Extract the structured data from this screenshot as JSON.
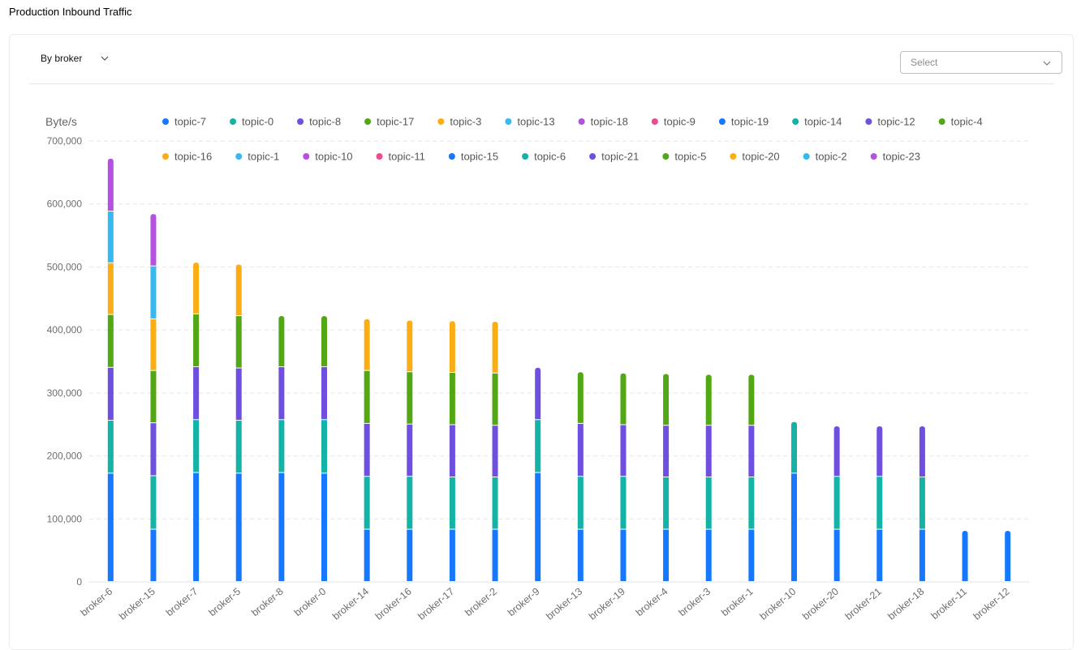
{
  "header": {
    "title": "Production Inbound Traffic"
  },
  "toolbar": {
    "group_by_label": "By broker",
    "filter_placeholder": "Select"
  },
  "colors": [
    "#1677ff",
    "#13b3a8",
    "#6f4fe0",
    "#52a814",
    "#faad14",
    "#36b9ee",
    "#b551e0",
    "#eb4b8f"
  ],
  "chart_data": {
    "type": "bar",
    "stacked": true,
    "ylabel": "Byte/s",
    "ylim": [
      0,
      700000
    ],
    "yticks": [
      0,
      100000,
      200000,
      300000,
      400000,
      500000,
      600000,
      700000
    ],
    "ytick_labels": [
      "0",
      "100,000",
      "200,000",
      "300,000",
      "400,000",
      "500,000",
      "600,000",
      "700,000"
    ],
    "grid": true,
    "legend_position": "top",
    "legend": [
      {
        "name": "topic-7",
        "color": "#1677ff"
      },
      {
        "name": "topic-0",
        "color": "#13b3a8"
      },
      {
        "name": "topic-8",
        "color": "#6f4fe0"
      },
      {
        "name": "topic-17",
        "color": "#52a814"
      },
      {
        "name": "topic-3",
        "color": "#faad14"
      },
      {
        "name": "topic-13",
        "color": "#36b9ee"
      },
      {
        "name": "topic-18",
        "color": "#b551e0"
      },
      {
        "name": "topic-9",
        "color": "#eb4b8f"
      },
      {
        "name": "topic-19",
        "color": "#1677ff"
      },
      {
        "name": "topic-14",
        "color": "#13b3a8"
      },
      {
        "name": "topic-12",
        "color": "#6f4fe0"
      },
      {
        "name": "topic-4",
        "color": "#52a814"
      },
      {
        "name": "topic-16",
        "color": "#faad14"
      },
      {
        "name": "topic-1",
        "color": "#36b9ee"
      },
      {
        "name": "topic-10",
        "color": "#b551e0"
      },
      {
        "name": "topic-11",
        "color": "#eb4b8f"
      },
      {
        "name": "topic-15",
        "color": "#1677ff"
      },
      {
        "name": "topic-6",
        "color": "#13b3a8"
      },
      {
        "name": "topic-21",
        "color": "#6f4fe0"
      },
      {
        "name": "topic-5",
        "color": "#52a814"
      },
      {
        "name": "topic-20",
        "color": "#faad14"
      },
      {
        "name": "topic-2",
        "color": "#36b9ee"
      },
      {
        "name": "topic-23",
        "color": "#b551e0"
      }
    ],
    "categories": [
      "broker-6",
      "broker-15",
      "broker-7",
      "broker-5",
      "broker-8",
      "broker-0",
      "broker-14",
      "broker-16",
      "broker-17",
      "broker-2",
      "broker-9",
      "broker-13",
      "broker-19",
      "broker-4",
      "broker-3",
      "broker-1",
      "broker-10",
      "broker-20",
      "broker-21",
      "broker-18",
      "broker-11",
      "broker-12"
    ],
    "segments": [
      [
        172000,
        84000,
        84000,
        84000,
        82000,
        82000,
        84000
      ],
      [
        83000,
        85000,
        84000,
        83000,
        82000,
        84000,
        83000
      ],
      [
        173000,
        84000,
        84000,
        84000,
        82000
      ],
      [
        172000,
        84000,
        83000,
        83000,
        82000
      ],
      [
        173000,
        84000,
        84000,
        81000
      ],
      [
        172000,
        85000,
        84000,
        81000
      ],
      [
        83000,
        84000,
        84000,
        84000,
        82000
      ],
      [
        83000,
        84000,
        83000,
        83000,
        82000
      ],
      [
        83000,
        83000,
        83000,
        83000,
        82000
      ],
      [
        83000,
        83000,
        82000,
        83000,
        82000
      ],
      [
        173000,
        84000,
        83000
      ],
      [
        83000,
        84000,
        84000,
        82000
      ],
      [
        83000,
        84000,
        82000,
        82000
      ],
      [
        83000,
        83000,
        82000,
        82000
      ],
      [
        83000,
        83000,
        82000,
        81000
      ],
      [
        83000,
        83000,
        82000,
        81000
      ],
      [
        172000,
        82000
      ],
      [
        83000,
        84000,
        80000
      ],
      [
        83000,
        84000,
        80000
      ],
      [
        83000,
        83000,
        81000
      ],
      [
        81000
      ],
      [
        81000
      ]
    ]
  }
}
